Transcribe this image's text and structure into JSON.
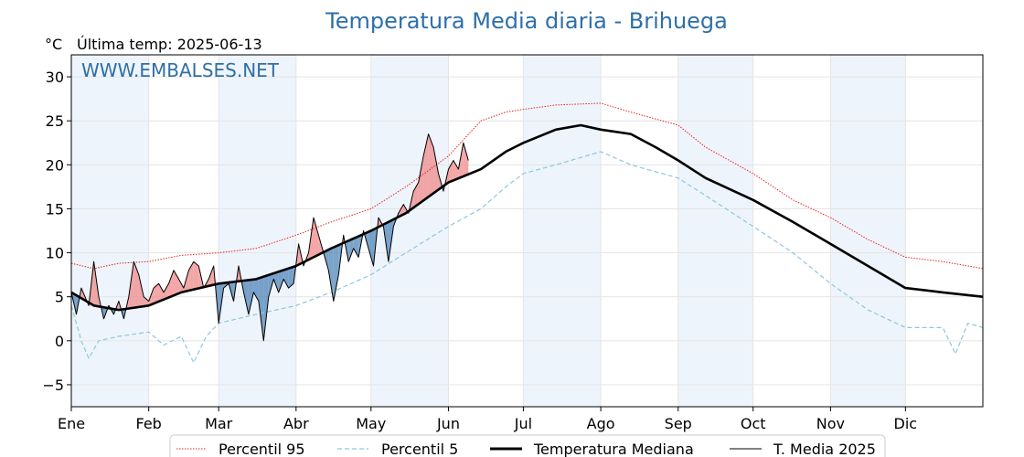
{
  "title": "Temperatura Media diaria - Brihuega",
  "unit": "°C",
  "last_update": "Última temp: 2025-06-13",
  "watermark": "WWW.EMBALSES.NET",
  "colors": {
    "title": "#2e6fa7",
    "p95": "#e8231f",
    "p5": "#8cc8dd",
    "median": "#000000",
    "current": "#000000",
    "above_fill": "#ef8a8a",
    "below_fill": "#4f86b8",
    "month_band": "#eef4fb"
  },
  "legend": [
    {
      "key": "p95",
      "label": "Percentil 95"
    },
    {
      "key": "p5",
      "label": "Percentil 5"
    },
    {
      "key": "median",
      "label": "Temperatura Mediana"
    },
    {
      "key": "current",
      "label": "T. Media 2025"
    }
  ],
  "chart_data": {
    "type": "line",
    "xlabel": "",
    "ylabel": "°C",
    "ylim": [
      -7.5,
      32.5
    ],
    "xlim": [
      1,
      366
    ],
    "month_ticks": [
      {
        "label": "Ene",
        "day": 1
      },
      {
        "label": "Feb",
        "day": 32
      },
      {
        "label": "Mar",
        "day": 60
      },
      {
        "label": "Abr",
        "day": 91
      },
      {
        "label": "May",
        "day": 121
      },
      {
        "label": "Jun",
        "day": 152
      },
      {
        "label": "Jul",
        "day": 182
      },
      {
        "label": "Ago",
        "day": 213
      },
      {
        "label": "Sep",
        "day": 244
      },
      {
        "label": "Oct",
        "day": 274
      },
      {
        "label": "Nov",
        "day": 305
      },
      {
        "label": "Dic",
        "day": 335
      }
    ],
    "y_ticks": [
      -5,
      0,
      5,
      10,
      15,
      20,
      25,
      30
    ],
    "shaded_months": [
      1,
      3,
      5,
      7,
      9,
      11
    ],
    "grid": true,
    "legend_position": "bottom",
    "series": [
      {
        "key": "p95",
        "name": "Percentil 95",
        "style": "dotted",
        "points": [
          [
            1,
            8.8
          ],
          [
            10,
            8.2
          ],
          [
            20,
            8.8
          ],
          [
            32,
            9.0
          ],
          [
            45,
            9.7
          ],
          [
            60,
            10.0
          ],
          [
            75,
            10.5
          ],
          [
            91,
            12.0
          ],
          [
            105,
            13.5
          ],
          [
            121,
            15.0
          ],
          [
            135,
            17.5
          ],
          [
            152,
            21.0
          ],
          [
            165,
            25.0
          ],
          [
            175,
            26.0
          ],
          [
            182,
            26.3
          ],
          [
            195,
            26.8
          ],
          [
            213,
            27.0
          ],
          [
            225,
            26.0
          ],
          [
            244,
            24.5
          ],
          [
            255,
            22.0
          ],
          [
            274,
            19.0
          ],
          [
            290,
            16.0
          ],
          [
            305,
            14.0
          ],
          [
            320,
            11.5
          ],
          [
            335,
            9.5
          ],
          [
            350,
            9.0
          ],
          [
            366,
            8.2
          ]
        ]
      },
      {
        "key": "p5",
        "name": "Percentil 5",
        "style": "dashed",
        "points": [
          [
            1,
            4.0
          ],
          [
            5,
            0.0
          ],
          [
            8,
            -2.0
          ],
          [
            12,
            0.0
          ],
          [
            20,
            0.5
          ],
          [
            32,
            1.0
          ],
          [
            38,
            -0.5
          ],
          [
            45,
            0.5
          ],
          [
            50,
            -2.5
          ],
          [
            55,
            0.5
          ],
          [
            60,
            2.0
          ],
          [
            75,
            3.0
          ],
          [
            91,
            4.0
          ],
          [
            105,
            5.5
          ],
          [
            121,
            7.5
          ],
          [
            135,
            10.0
          ],
          [
            152,
            13.0
          ],
          [
            165,
            15.0
          ],
          [
            175,
            17.5
          ],
          [
            182,
            19.0
          ],
          [
            195,
            20.0
          ],
          [
            213,
            21.5
          ],
          [
            225,
            20.0
          ],
          [
            244,
            18.5
          ],
          [
            255,
            16.5
          ],
          [
            274,
            13.0
          ],
          [
            290,
            10.0
          ],
          [
            305,
            6.5
          ],
          [
            320,
            3.5
          ],
          [
            335,
            1.5
          ],
          [
            350,
            1.5
          ],
          [
            355,
            -1.5
          ],
          [
            360,
            2.0
          ],
          [
            366,
            1.5
          ]
        ]
      },
      {
        "key": "median",
        "name": "Temperatura Mediana",
        "style": "solid-thick",
        "points": [
          [
            1,
            5.5
          ],
          [
            10,
            4.0
          ],
          [
            20,
            3.5
          ],
          [
            32,
            4.0
          ],
          [
            45,
            5.5
          ],
          [
            60,
            6.5
          ],
          [
            75,
            7.0
          ],
          [
            91,
            8.5
          ],
          [
            105,
            10.5
          ],
          [
            121,
            12.5
          ],
          [
            135,
            14.5
          ],
          [
            152,
            18.0
          ],
          [
            165,
            19.5
          ],
          [
            175,
            21.5
          ],
          [
            182,
            22.5
          ],
          [
            195,
            24.0
          ],
          [
            205,
            24.5
          ],
          [
            213,
            24.0
          ],
          [
            225,
            23.5
          ],
          [
            235,
            22.0
          ],
          [
            244,
            20.5
          ],
          [
            255,
            18.5
          ],
          [
            274,
            16.0
          ],
          [
            290,
            13.5
          ],
          [
            305,
            11.0
          ],
          [
            320,
            8.5
          ],
          [
            335,
            6.0
          ],
          [
            350,
            5.5
          ],
          [
            366,
            5.0
          ]
        ]
      },
      {
        "key": "current",
        "name": "T. Media 2025",
        "style": "solid-thin",
        "points": [
          [
            1,
            5.5
          ],
          [
            3,
            3.0
          ],
          [
            5,
            6.0
          ],
          [
            8,
            4.0
          ],
          [
            10,
            9.0
          ],
          [
            12,
            5.0
          ],
          [
            14,
            2.5
          ],
          [
            16,
            4.0
          ],
          [
            18,
            3.0
          ],
          [
            20,
            4.5
          ],
          [
            22,
            2.5
          ],
          [
            24,
            5.0
          ],
          [
            26,
            9.0
          ],
          [
            28,
            7.5
          ],
          [
            30,
            5.0
          ],
          [
            32,
            4.5
          ],
          [
            34,
            6.0
          ],
          [
            36,
            6.5
          ],
          [
            38,
            5.5
          ],
          [
            40,
            6.5
          ],
          [
            42,
            8.0
          ],
          [
            44,
            7.0
          ],
          [
            46,
            6.0
          ],
          [
            48,
            8.0
          ],
          [
            50,
            9.0
          ],
          [
            52,
            8.5
          ],
          [
            54,
            6.0
          ],
          [
            56,
            7.0
          ],
          [
            58,
            8.5
          ],
          [
            60,
            2.0
          ],
          [
            62,
            6.0
          ],
          [
            64,
            6.5
          ],
          [
            66,
            4.5
          ],
          [
            68,
            8.5
          ],
          [
            70,
            5.5
          ],
          [
            72,
            3.0
          ],
          [
            74,
            5.5
          ],
          [
            76,
            4.5
          ],
          [
            78,
            0.0
          ],
          [
            80,
            5.0
          ],
          [
            82,
            7.0
          ],
          [
            84,
            5.5
          ],
          [
            86,
            7.0
          ],
          [
            88,
            6.0
          ],
          [
            90,
            6.5
          ],
          [
            92,
            11.0
          ],
          [
            94,
            8.5
          ],
          [
            96,
            10.0
          ],
          [
            98,
            14.0
          ],
          [
            100,
            12.0
          ],
          [
            102,
            10.0
          ],
          [
            104,
            8.0
          ],
          [
            106,
            4.5
          ],
          [
            108,
            7.5
          ],
          [
            110,
            12.0
          ],
          [
            112,
            9.0
          ],
          [
            114,
            10.5
          ],
          [
            116,
            9.5
          ],
          [
            118,
            12.5
          ],
          [
            120,
            10.5
          ],
          [
            122,
            8.5
          ],
          [
            124,
            14.0
          ],
          [
            126,
            13.0
          ],
          [
            128,
            9.0
          ],
          [
            130,
            13.0
          ],
          [
            132,
            14.5
          ],
          [
            134,
            15.5
          ],
          [
            136,
            14.5
          ],
          [
            138,
            17.0
          ],
          [
            140,
            18.0
          ],
          [
            142,
            21.0
          ],
          [
            144,
            23.5
          ],
          [
            146,
            22.0
          ],
          [
            148,
            19.0
          ],
          [
            150,
            17.0
          ],
          [
            152,
            19.5
          ],
          [
            154,
            20.5
          ],
          [
            156,
            19.5
          ],
          [
            158,
            22.5
          ],
          [
            160,
            20.5
          ]
        ]
      }
    ]
  }
}
